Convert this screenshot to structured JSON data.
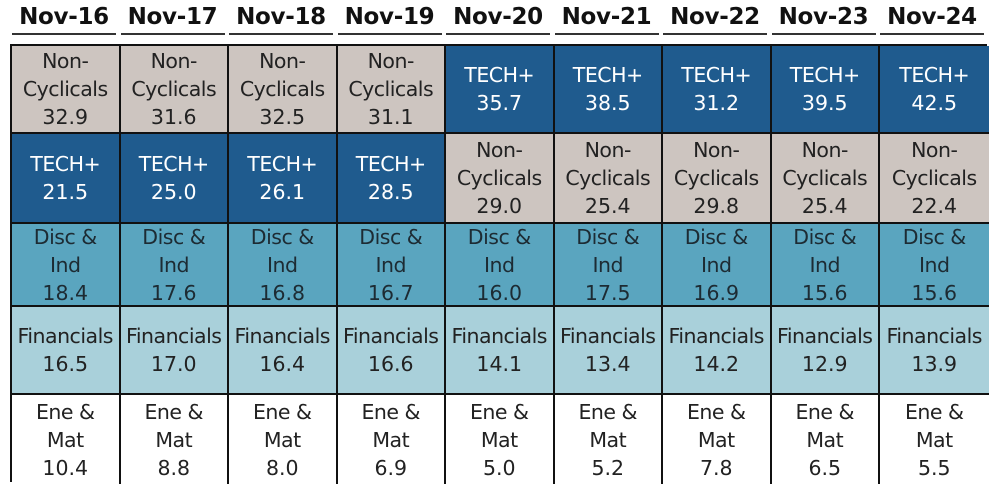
{
  "chart_data": {
    "type": "table",
    "title": "",
    "columns": [
      "Nov-16",
      "Nov-17",
      "Nov-18",
      "Nov-19",
      "Nov-20",
      "Nov-21",
      "Nov-22",
      "Nov-23",
      "Nov-24"
    ],
    "sectors": {
      "noncyc": {
        "label": "Non-\nCyclicals",
        "color": "#cdc5c0",
        "text_color": "#222222"
      },
      "tech": {
        "label": "TECH+",
        "color": "#1f5b8e",
        "text_color": "#ffffff"
      },
      "disc": {
        "label": "Disc &\nInd",
        "color": "#5aa5bf",
        "text_color": "#1d2b33"
      },
      "fin": {
        "label": "Financials",
        "color": "#a9d0da",
        "text_color": "#222222"
      },
      "ene": {
        "label": "Ene &\nMat",
        "color": "#ffffff",
        "text_color": "#222222"
      }
    },
    "ranking": [
      [
        [
          "noncyc",
          "32.9"
        ],
        [
          "tech",
          "21.5"
        ],
        [
          "disc",
          "18.4"
        ],
        [
          "fin",
          "16.5"
        ],
        [
          "ene",
          "10.4"
        ]
      ],
      [
        [
          "noncyc",
          "31.6"
        ],
        [
          "tech",
          "25.0"
        ],
        [
          "disc",
          "17.6"
        ],
        [
          "fin",
          "17.0"
        ],
        [
          "ene",
          "8.8"
        ]
      ],
      [
        [
          "noncyc",
          "32.5"
        ],
        [
          "tech",
          "26.1"
        ],
        [
          "disc",
          "16.8"
        ],
        [
          "fin",
          "16.4"
        ],
        [
          "ene",
          "8.0"
        ]
      ],
      [
        [
          "noncyc",
          "31.1"
        ],
        [
          "tech",
          "28.5"
        ],
        [
          "disc",
          "16.7"
        ],
        [
          "fin",
          "16.6"
        ],
        [
          "ene",
          "6.9"
        ]
      ],
      [
        [
          "tech",
          "35.7"
        ],
        [
          "noncyc",
          "29.0"
        ],
        [
          "disc",
          "16.0"
        ],
        [
          "fin",
          "14.1"
        ],
        [
          "ene",
          "5.0"
        ]
      ],
      [
        [
          "tech",
          "38.5"
        ],
        [
          "noncyc",
          "25.4"
        ],
        [
          "disc",
          "17.5"
        ],
        [
          "fin",
          "13.4"
        ],
        [
          "ene",
          "5.2"
        ]
      ],
      [
        [
          "tech",
          "31.2"
        ],
        [
          "noncyc",
          "29.8"
        ],
        [
          "disc",
          "16.9"
        ],
        [
          "fin",
          "14.2"
        ],
        [
          "ene",
          "7.8"
        ]
      ],
      [
        [
          "tech",
          "39.5"
        ],
        [
          "noncyc",
          "25.4"
        ],
        [
          "disc",
          "15.6"
        ],
        [
          "fin",
          "12.9"
        ],
        [
          "ene",
          "6.5"
        ]
      ],
      [
        [
          "tech",
          "42.5"
        ],
        [
          "noncyc",
          "22.4"
        ],
        [
          "disc",
          "15.6"
        ],
        [
          "fin",
          "13.9"
        ],
        [
          "ene",
          "5.5"
        ]
      ]
    ]
  }
}
